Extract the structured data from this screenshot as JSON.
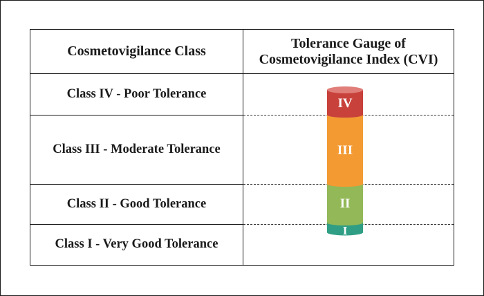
{
  "header": {
    "left": "Cosmetovigilance Class",
    "right_line1": "Tolerance Gauge of",
    "right_line2": "Cosmetovigilance Index (CVI)"
  },
  "classes": [
    {
      "label": "Class IV - Poor Tolerance",
      "numeral": "IV",
      "color": "#c8413b"
    },
    {
      "label": "Class III - Moderate Tolerance",
      "numeral": "III",
      "color": "#f39a33"
    },
    {
      "label": "Class II - Good Tolerance",
      "numeral": "II",
      "color": "#93b857"
    },
    {
      "label": "Class I - Very Good Tolerance",
      "numeral": "I",
      "color": "#2f9e84"
    }
  ]
}
